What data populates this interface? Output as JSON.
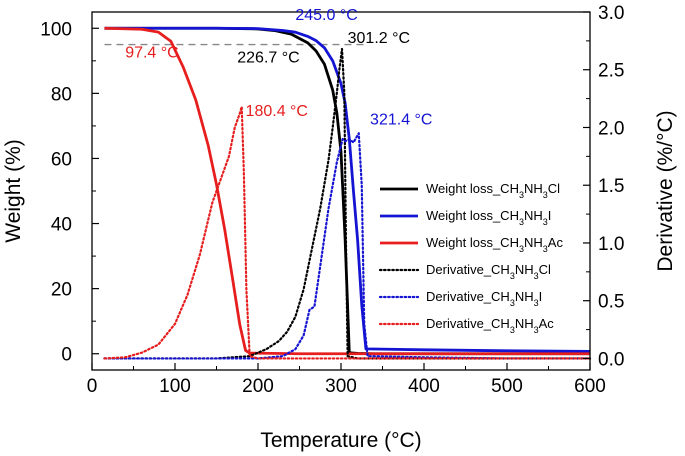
{
  "chart_data": {
    "type": "line",
    "title": "",
    "xlabel": "Temperature (°C)",
    "ylabel_left": "Weight (%)",
    "ylabel_right": "Derivative (%/°C)",
    "xlim": [
      0,
      600
    ],
    "ylim_left": [
      -5,
      105
    ],
    "ylim_right": [
      -0.1,
      3.0
    ],
    "x_ticks": [
      "0",
      "100",
      "200",
      "300",
      "400",
      "500",
      "600"
    ],
    "y_left_ticks": [
      "0",
      "20",
      "40",
      "60",
      "80",
      "100"
    ],
    "y_right_ticks": [
      "0.0",
      "0.5",
      "1.0",
      "1.5",
      "2.0",
      "2.5",
      "3.0"
    ],
    "grid": false,
    "legend_placement": "center-right",
    "reference_line": {
      "y": 95,
      "x": [
        15,
        330
      ],
      "axis": "left",
      "style": "dashed",
      "color": "#888888"
    },
    "series": [
      {
        "name": "Weight loss_CH3NH3Cl",
        "label_main": "Weight loss_CH",
        "sub1": "3",
        "mid": "NH",
        "sub2": "3",
        "suffix": "Cl",
        "axis": "left",
        "style": "solid",
        "color": "#000000",
        "x": [
          15,
          150,
          200,
          220,
          240,
          260,
          270,
          280,
          290,
          295,
          300,
          305,
          310,
          320,
          340,
          400,
          500,
          600
        ],
        "y": [
          100,
          100,
          99.8,
          99.3,
          98.2,
          95.5,
          93,
          89,
          81,
          74,
          62,
          35,
          0.3,
          0.1,
          0,
          0,
          0,
          0
        ]
      },
      {
        "name": "Weight loss_CH3NH3I",
        "label_main": "Weight loss_CH",
        "sub1": "3",
        "mid": "NH",
        "sub2": "3",
        "suffix": "I",
        "axis": "left",
        "style": "solid",
        "color": "#1414d2",
        "x": [
          15,
          150,
          200,
          230,
          245,
          260,
          270,
          280,
          290,
          300,
          305,
          310,
          315,
          320,
          325,
          330,
          400,
          500,
          600
        ],
        "y": [
          100,
          100,
          99.9,
          99.3,
          98.8,
          97.5,
          96.2,
          94,
          90,
          83,
          77,
          66,
          50,
          35,
          15,
          1.5,
          1.2,
          0.9,
          0.7
        ]
      },
      {
        "name": "Weight loss_CH3NH3Ac",
        "label_main": "Weight loss_CH",
        "sub1": "3",
        "mid": "NH",
        "sub2": "3",
        "suffix": "Ac",
        "axis": "left",
        "style": "solid",
        "color": "#e61e1e",
        "x": [
          15,
          60,
          80,
          95,
          110,
          125,
          140,
          150,
          160,
          170,
          178,
          185,
          190,
          250,
          400,
          600
        ],
        "y": [
          100,
          99.7,
          98.8,
          96,
          88,
          78,
          64,
          52,
          38,
          22,
          9,
          1,
          0.2,
          0,
          0,
          0
        ]
      },
      {
        "name": "Derivative_CH3NH3Cl",
        "label_main": "Derivative_CH",
        "sub1": "3",
        "mid": "NH",
        "sub2": "3",
        "suffix": "Cl",
        "axis": "right",
        "style": "dotted",
        "color": "#000000",
        "x": [
          15,
          150,
          190,
          210,
          225,
          235,
          245,
          255,
          265,
          275,
          285,
          290,
          295,
          298,
          301.2,
          304,
          306,
          308,
          320,
          400,
          500,
          600
        ],
        "y": [
          0,
          0,
          0.02,
          0.08,
          0.15,
          0.23,
          0.36,
          0.6,
          0.95,
          1.3,
          1.72,
          2.0,
          2.3,
          2.5,
          2.68,
          2.3,
          1.0,
          0.02,
          0,
          0,
          0,
          0
        ]
      },
      {
        "name": "Derivative_CH3NH3I",
        "label_main": "Derivative_CH",
        "sub1": "3",
        "mid": "NH",
        "sub2": "3",
        "suffix": "I",
        "axis": "right",
        "style": "dotted",
        "color": "#1414d2",
        "x": [
          15,
          200,
          230,
          245,
          255,
          262,
          268,
          275,
          285,
          295,
          302,
          305,
          310,
          315,
          321.4,
          325,
          328,
          332,
          400,
          500,
          600
        ],
        "y": [
          0,
          0,
          0.02,
          0.08,
          0.2,
          0.42,
          0.45,
          0.8,
          1.3,
          1.7,
          1.9,
          1.88,
          1.9,
          1.87,
          1.95,
          1.5,
          0.3,
          0.02,
          0.01,
          0,
          0
        ]
      },
      {
        "name": "Derivative_CH3NH3Ac",
        "label_main": "Derivative_CH",
        "sub1": "3",
        "mid": "NH",
        "sub2": "3",
        "suffix": "Ac",
        "axis": "right",
        "style": "dotted",
        "color": "#e61e1e",
        "x": [
          15,
          40,
          60,
          80,
          100,
          115,
          130,
          145,
          155,
          165,
          172,
          178,
          180.4,
          183,
          186,
          190,
          200,
          600
        ],
        "y": [
          0,
          0.01,
          0.05,
          0.12,
          0.3,
          0.55,
          0.9,
          1.35,
          1.55,
          1.75,
          2.0,
          2.12,
          2.18,
          1.6,
          0.6,
          0.02,
          0,
          0
        ]
      }
    ],
    "annotations": [
      {
        "text": "245.0 °C",
        "x": 245,
        "y": 102.5,
        "axis": "left",
        "color": "#1414d2",
        "anchor": "start"
      },
      {
        "text": "301.2 °C",
        "x": 308,
        "y": 95.5,
        "axis": "left",
        "color": "#000000",
        "anchor": "start"
      },
      {
        "text": "226.7 °C",
        "x": 175,
        "y": 89.5,
        "axis": "left",
        "color": "#000000",
        "anchor": "start"
      },
      {
        "text": "97.4 °C",
        "x": 40,
        "y": 91,
        "axis": "left",
        "color": "#e61e1e",
        "anchor": "start"
      },
      {
        "text": "180.4 °C",
        "x": 185,
        "y": 73,
        "axis": "left",
        "color": "#e61e1e",
        "anchor": "start"
      },
      {
        "text": "321.4 °C",
        "x": 335,
        "y": 70.5,
        "axis": "left",
        "color": "#1414d2",
        "anchor": "start"
      }
    ]
  }
}
